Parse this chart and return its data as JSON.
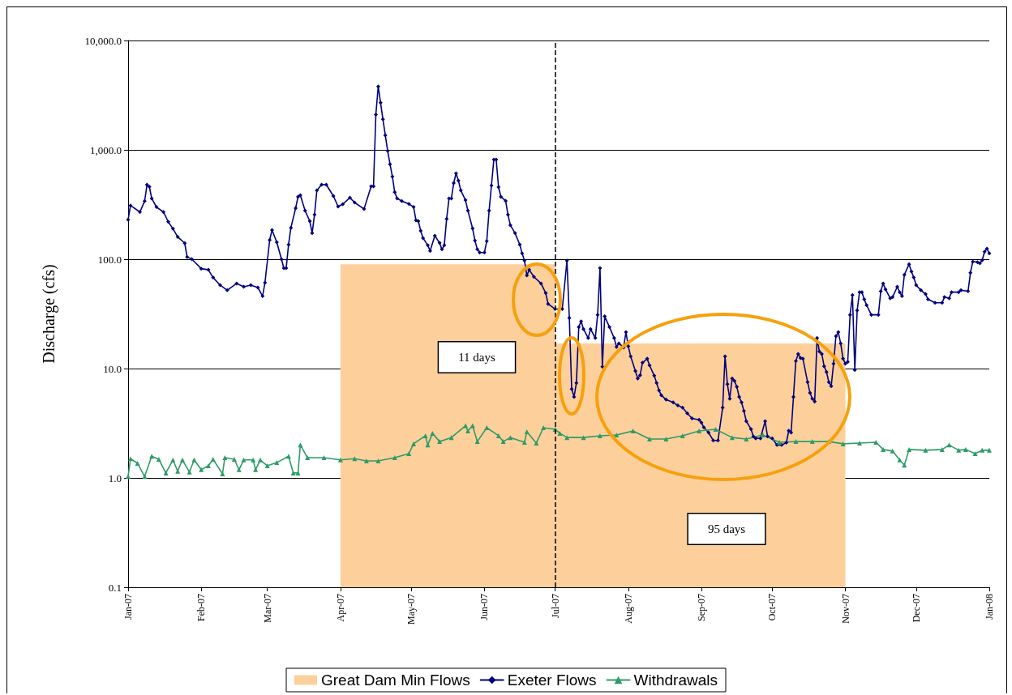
{
  "chart_data": {
    "type": "line",
    "ylabel": "Discharge (cfs)",
    "annotations": [
      "11 days",
      "95 days"
    ],
    "log": "y",
    "grid": "y",
    "legend": "bottom",
    "xlim": [
      "2007-01-01",
      "2008-01-01"
    ],
    "xticks": [
      {
        "value": "2007-01-01",
        "label": "Jan-07"
      },
      {
        "value": "2007-02-01",
        "label": "Feb-07"
      },
      {
        "value": "2007-03-01",
        "label": "Mar-07"
      },
      {
        "value": "2007-04-01",
        "label": "Apr-07"
      },
      {
        "value": "2007-05-01",
        "label": "May-07"
      },
      {
        "value": "2007-06-01",
        "label": "Jun-07"
      },
      {
        "value": "2007-07-01",
        "label": "Jul-07"
      },
      {
        "value": "2007-08-01",
        "label": "Aug-07"
      },
      {
        "value": "2007-09-01",
        "label": "Sep-07"
      },
      {
        "value": "2007-10-01",
        "label": "Oct-07"
      },
      {
        "value": "2007-11-01",
        "label": "Nov-07"
      },
      {
        "value": "2007-12-01",
        "label": "Dec-07"
      },
      {
        "value": "2008-01-01",
        "label": "Jan-08"
      }
    ],
    "ylim": [
      0.1,
      10000
    ],
    "yticks": [
      {
        "value": 0.1,
        "label": "0.1"
      },
      {
        "value": 1,
        "label": "1.0"
      },
      {
        "value": 10,
        "label": "10.0"
      },
      {
        "value": 100,
        "label": "100.0"
      },
      {
        "value": 1000,
        "label": "1,000.0"
      },
      {
        "value": 10000,
        "label": "10,000.0"
      }
    ],
    "ref_lines": [
      {
        "axis": "x",
        "value": "2007-07-01",
        "color": "#000000",
        "line_style": "dashed"
      }
    ],
    "series": [
      {
        "name": "Great Dam Min Flows",
        "type": "area",
        "color": "#fdd09b",
        "marker": "none",
        "x": [
          "2007-04-01",
          "2007-07-01",
          "2007-07-01",
          "2007-11-01"
        ],
        "values": [
          90,
          90,
          17,
          17
        ]
      },
      {
        "name": "Exeter Flows",
        "color": "#000080",
        "marker": "diamond",
        "x": [
          "2007-01-01",
          "2007-01-02",
          "2007-01-06",
          "2007-01-08",
          "2007-01-09",
          "2007-01-10",
          "2007-01-11",
          "2007-01-13",
          "2007-01-16",
          "2007-01-18",
          "2007-01-20",
          "2007-01-22",
          "2007-01-25",
          "2007-01-26",
          "2007-01-28",
          "2007-02-01",
          "2007-02-04",
          "2007-02-06",
          "2007-02-09",
          "2007-02-12",
          "2007-02-16",
          "2007-02-19",
          "2007-02-22",
          "2007-02-25",
          "2007-02-27",
          "2007-02-28",
          "2007-03-02",
          "2007-03-03",
          "2007-03-05",
          "2007-03-07",
          "2007-03-08",
          "2007-03-09",
          "2007-03-10",
          "2007-03-11",
          "2007-03-13",
          "2007-03-14",
          "2007-03-15",
          "2007-03-17",
          "2007-03-19",
          "2007-03-20",
          "2007-03-21",
          "2007-03-22",
          "2007-03-24",
          "2007-03-26",
          "2007-03-29",
          "2007-03-31",
          "2007-04-02",
          "2007-04-05",
          "2007-04-07",
          "2007-04-11",
          "2007-04-14",
          "2007-04-15",
          "2007-04-16",
          "2007-04-17",
          "2007-04-18",
          "2007-04-19",
          "2007-04-20",
          "2007-04-21",
          "2007-04-22",
          "2007-04-23",
          "2007-04-24",
          "2007-04-25",
          "2007-04-27",
          "2007-04-30",
          "2007-05-02",
          "2007-05-03",
          "2007-05-04",
          "2007-05-05",
          "2007-05-06",
          "2007-05-08",
          "2007-05-09",
          "2007-05-11",
          "2007-05-13",
          "2007-05-14",
          "2007-05-15",
          "2007-05-16",
          "2007-05-17",
          "2007-05-18",
          "2007-05-19",
          "2007-05-20",
          "2007-05-21",
          "2007-05-22",
          "2007-05-24",
          "2007-05-25",
          "2007-05-27",
          "2007-05-28",
          "2007-05-29",
          "2007-05-30",
          "2007-06-01",
          "2007-06-02",
          "2007-06-03",
          "2007-06-04",
          "2007-06-05",
          "2007-06-06",
          "2007-06-07",
          "2007-06-08",
          "2007-06-10",
          "2007-06-11",
          "2007-06-12",
          "2007-06-14",
          "2007-06-16",
          "2007-06-17",
          "2007-06-18",
          "2007-06-19",
          "2007-06-20",
          "2007-06-22",
          "2007-06-25",
          "2007-06-27",
          "2007-06-28",
          "2007-07-01",
          "2007-07-04",
          "2007-07-06",
          "2007-07-07",
          "2007-07-08",
          "2007-07-09",
          "2007-07-10",
          "2007-07-11",
          "2007-07-12",
          "2007-07-13",
          "2007-07-15",
          "2007-07-16",
          "2007-07-18",
          "2007-07-19",
          "2007-07-20",
          "2007-07-21",
          "2007-07-22",
          "2007-07-24",
          "2007-07-26",
          "2007-07-27",
          "2007-07-28",
          "2007-07-30",
          "2007-07-31",
          "2007-08-01",
          "2007-08-02",
          "2007-08-04",
          "2007-08-05",
          "2007-08-06",
          "2007-08-07",
          "2007-08-09",
          "2007-08-10",
          "2007-08-12",
          "2007-08-13",
          "2007-08-14",
          "2007-08-15",
          "2007-08-17",
          "2007-08-20",
          "2007-08-22",
          "2007-08-24",
          "2007-08-26",
          "2007-08-28",
          "2007-08-31",
          "2007-09-01",
          "2007-09-02",
          "2007-09-04",
          "2007-09-06",
          "2007-09-08",
          "2007-09-10",
          "2007-09-11",
          "2007-09-12",
          "2007-09-13",
          "2007-09-14",
          "2007-09-15",
          "2007-09-16",
          "2007-09-17",
          "2007-09-18",
          "2007-09-19",
          "2007-09-20",
          "2007-09-22",
          "2007-09-23",
          "2007-09-24",
          "2007-09-26",
          "2007-09-28",
          "2007-09-29",
          "2007-10-01",
          "2007-10-03",
          "2007-10-05",
          "2007-10-07",
          "2007-10-08",
          "2007-10-09",
          "2007-10-10",
          "2007-10-11",
          "2007-10-12",
          "2007-10-13",
          "2007-10-14",
          "2007-10-16",
          "2007-10-17",
          "2007-10-18",
          "2007-10-19",
          "2007-10-20",
          "2007-10-21",
          "2007-10-22",
          "2007-10-23",
          "2007-10-24",
          "2007-10-25",
          "2007-10-26",
          "2007-10-27",
          "2007-10-28",
          "2007-10-29",
          "2007-10-30",
          "2007-10-31",
          "2007-11-01",
          "2007-11-02",
          "2007-11-03",
          "2007-11-04",
          "2007-11-05",
          "2007-11-06",
          "2007-11-07",
          "2007-11-08",
          "2007-11-09",
          "2007-11-10",
          "2007-11-12",
          "2007-11-15",
          "2007-11-16",
          "2007-11-17",
          "2007-11-18",
          "2007-11-20",
          "2007-11-21",
          "2007-11-23",
          "2007-11-24",
          "2007-11-25",
          "2007-11-26",
          "2007-11-28",
          "2007-11-29",
          "2007-11-30",
          "2007-12-01",
          "2007-12-03",
          "2007-12-05",
          "2007-12-06",
          "2007-12-09",
          "2007-12-12",
          "2007-12-13",
          "2007-12-15",
          "2007-12-16",
          "2007-12-19",
          "2007-12-20",
          "2007-12-23",
          "2007-12-24",
          "2007-12-25",
          "2007-12-27",
          "2007-12-28",
          "2007-12-29",
          "2007-12-30",
          "2007-12-31",
          "2008-01-01"
        ],
        "values": [
          230,
          310,
          270,
          340,
          480,
          460,
          360,
          300,
          270,
          220,
          190,
          160,
          140,
          105,
          100,
          82,
          80,
          68,
          58,
          52,
          60,
          56,
          58,
          55,
          46,
          61,
          150,
          185,
          143,
          100,
          83,
          83,
          136,
          194,
          293,
          372,
          385,
          278,
          223,
          173,
          255,
          426,
          480,
          480,
          378,
          303,
          319,
          365,
          330,
          288,
          464,
          464,
          2100,
          3800,
          2700,
          1900,
          1360,
          980,
          740,
          570,
          410,
          360,
          340,
          320,
          300,
          227,
          223,
          182,
          156,
          134,
          119,
          164,
          141,
          123,
          134,
          234,
          359,
          359,
          497,
          610,
          523,
          426,
          347,
          278,
          191,
          148,
          123,
          115,
          115,
          146,
          278,
          472,
          815,
          815,
          456,
          372,
          342,
          255,
          205,
          173,
          136,
          113,
          97,
          71,
          80,
          69,
          60,
          49,
          39,
          35,
          35,
          97,
          29,
          6.5,
          5.5,
          7.4,
          24,
          27,
          23,
          19,
          23,
          19,
          31,
          83,
          10.4,
          30,
          24,
          19,
          15.8,
          17,
          15.6,
          21.5,
          16,
          12.9,
          9.5,
          8.1,
          8.7,
          11.3,
          12.3,
          10.7,
          8.6,
          7.4,
          6.3,
          5.7,
          5.2,
          4.9,
          4.6,
          4.4,
          3.9,
          3.5,
          3.4,
          3.2,
          2.9,
          2.6,
          2.2,
          2.2,
          4.4,
          12.9,
          7.2,
          5.3,
          8.1,
          7.7,
          6.8,
          5.5,
          4.9,
          4.1,
          3.3,
          2.8,
          2.4,
          2.3,
          2.3,
          3.3,
          2.4,
          2.3,
          2.0,
          2.0,
          2.1,
          2.7,
          2.6,
          5.5,
          11.7,
          13.6,
          12.5,
          12.3,
          7.5,
          6.0,
          5.3,
          5.0,
          19,
          14.3,
          13.6,
          10.5,
          9.3,
          7.5,
          6.9,
          11.1,
          19.8,
          21.5,
          17,
          12.3,
          11.1,
          11.5,
          31,
          47,
          9.7,
          34,
          50,
          50,
          43,
          38,
          31,
          31,
          51,
          60,
          53,
          44,
          45,
          56,
          50,
          46,
          72,
          90,
          77,
          68,
          58,
          52,
          48,
          43,
          40,
          40,
          45,
          44,
          50,
          50,
          52,
          51,
          75,
          95,
          94,
          92,
          98,
          117,
          125,
          113
        ]
      },
      {
        "name": "Withdrawals",
        "color": "#2e9b68",
        "marker": "triangle",
        "x": [
          "2007-01-01",
          "2007-01-02",
          "2007-01-05",
          "2007-01-08",
          "2007-01-11",
          "2007-01-14",
          "2007-01-17",
          "2007-01-20",
          "2007-01-22",
          "2007-01-24",
          "2007-01-27",
          "2007-01-29",
          "2007-02-01",
          "2007-02-04",
          "2007-02-06",
          "2007-02-10",
          "2007-02-11",
          "2007-02-15",
          "2007-02-17",
          "2007-02-19",
          "2007-02-23",
          "2007-02-24",
          "2007-02-26",
          "2007-03-01",
          "2007-03-05",
          "2007-03-10",
          "2007-03-12",
          "2007-03-14",
          "2007-03-15",
          "2007-03-18",
          "2007-03-25",
          "2007-04-01",
          "2007-04-07",
          "2007-04-12",
          "2007-04-17",
          "2007-04-24",
          "2007-04-30",
          "2007-05-02",
          "2007-05-07",
          "2007-05-08",
          "2007-05-10",
          "2007-05-13",
          "2007-05-18",
          "2007-05-24",
          "2007-05-25",
          "2007-05-27",
          "2007-05-29",
          "2007-06-02",
          "2007-06-07",
          "2007-06-09",
          "2007-06-12",
          "2007-06-18",
          "2007-06-19",
          "2007-06-23",
          "2007-06-26",
          "2007-07-01",
          "2007-07-03",
          "2007-07-06",
          "2007-07-13",
          "2007-07-20",
          "2007-07-27",
          "2007-08-03",
          "2007-08-10",
          "2007-08-17",
          "2007-08-24",
          "2007-08-31",
          "2007-09-07",
          "2007-09-14",
          "2007-09-20",
          "2007-09-27",
          "2007-10-04",
          "2007-10-11",
          "2007-10-18",
          "2007-10-25",
          "2007-10-31",
          "2007-11-07",
          "2007-11-14",
          "2007-11-17",
          "2007-11-21",
          "2007-11-24",
          "2007-11-26",
          "2007-11-28",
          "2007-12-05",
          "2007-12-12",
          "2007-12-15",
          "2007-12-19",
          "2007-12-22",
          "2007-12-26",
          "2007-12-29",
          "2008-01-01"
        ],
        "values": [
          1.03,
          1.5,
          1.36,
          1.03,
          1.58,
          1.48,
          1.11,
          1.46,
          1.15,
          1.46,
          1.13,
          1.46,
          1.19,
          1.29,
          1.48,
          1.09,
          1.53,
          1.48,
          1.19,
          1.46,
          1.46,
          1.19,
          1.46,
          1.29,
          1.38,
          1.58,
          1.11,
          1.11,
          2.0,
          1.53,
          1.53,
          1.46,
          1.5,
          1.43,
          1.43,
          1.53,
          1.67,
          2.05,
          2.43,
          2.0,
          2.56,
          2.15,
          2.34,
          3.0,
          2.69,
          3.0,
          2.15,
          2.88,
          2.43,
          2.15,
          2.34,
          2.12,
          2.64,
          2.08,
          2.88,
          2.78,
          2.56,
          2.34,
          2.34,
          2.43,
          2.47,
          2.69,
          2.27,
          2.27,
          2.43,
          2.69,
          2.78,
          2.34,
          2.27,
          2.47,
          2.12,
          2.15,
          2.15,
          2.15,
          2.05,
          2.08,
          2.12,
          1.82,
          1.76,
          1.46,
          1.31,
          1.82,
          1.79,
          1.82,
          2.0,
          1.79,
          1.82,
          1.67,
          1.79,
          1.79
        ]
      }
    ]
  }
}
